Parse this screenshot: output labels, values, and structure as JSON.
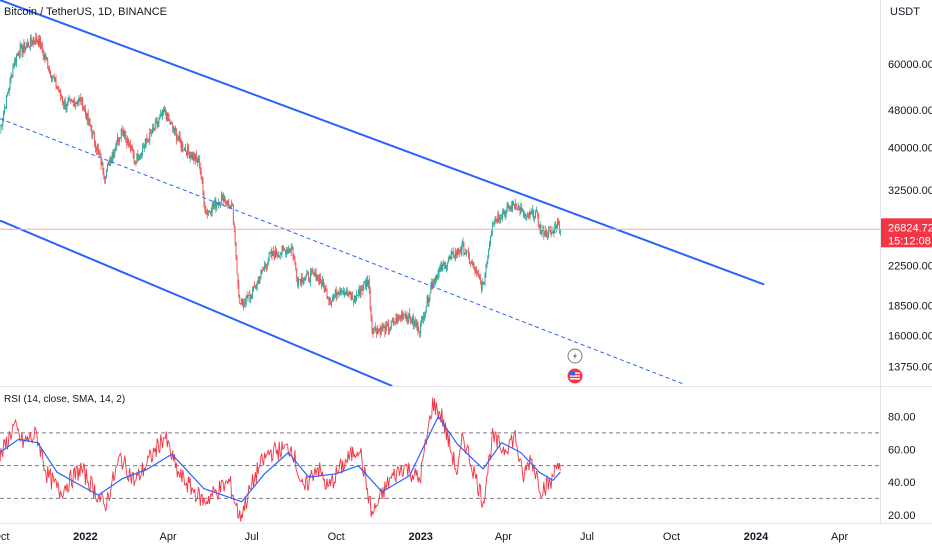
{
  "header": {
    "title": "Bitcoin / TetherUS, 1D, BINANCE",
    "currency": "USDT"
  },
  "colors": {
    "candle_up": "#26a69a",
    "candle_down": "#ef5350",
    "channel": "#2962ff",
    "price_line": "#f7a8a8",
    "price_label_bg": "#f23645",
    "rsi_line": "#f23645",
    "rsi_ma": "#2962ff",
    "rsi_bands": "#787b86"
  },
  "icons": [
    "bolt-icon",
    "us-flag-icon"
  ],
  "chart_data": [
    {
      "type": "candlestick",
      "title": "Bitcoin / TetherUS, 1D, BINANCE",
      "ylabel": "USDT",
      "scale": "log",
      "ylim": [
        12500,
        82000
      ],
      "y_ticks": [
        60000,
        48000,
        40000,
        32500,
        22500,
        18500,
        16000,
        13750
      ],
      "y_tick_labels": [
        "60000.00",
        "48000.00",
        "40000.00",
        "32500.00",
        "22500.00",
        "18500.00",
        "16000.00",
        "13750.00"
      ],
      "x_ticks": [
        "2021-10-01",
        "2022-01-01",
        "2022-04-01",
        "2022-07-01",
        "2022-10-01",
        "2023-01-01",
        "2023-04-01",
        "2023-07-01",
        "2023-10-01",
        "2024-01-01",
        "2024-04-01"
      ],
      "x_tick_labels": [
        "Oct",
        "2022",
        "Apr",
        "Jul",
        "Oct",
        "2023",
        "Apr",
        "Jul",
        "Oct",
        "2024",
        "Apr"
      ],
      "xlim": [
        "2021-09-30",
        "2024-05-15"
      ],
      "price_path": [
        [
          "2021-09-30",
          43500
        ],
        [
          "2021-10-15",
          60000
        ],
        [
          "2021-10-20",
          64000
        ],
        [
          "2021-11-10",
          68000
        ],
        [
          "2021-11-25",
          57000
        ],
        [
          "2021-12-10",
          49000
        ],
        [
          "2021-12-27",
          50500
        ],
        [
          "2022-01-10",
          42000
        ],
        [
          "2022-01-22",
          35000
        ],
        [
          "2022-02-10",
          44000
        ],
        [
          "2022-02-24",
          37500
        ],
        [
          "2022-03-28",
          47500
        ],
        [
          "2022-04-15",
          40500
        ],
        [
          "2022-05-05",
          37000
        ],
        [
          "2022-05-12",
          29000
        ],
        [
          "2022-05-31",
          31500
        ],
        [
          "2022-06-10",
          29500
        ],
        [
          "2022-06-18",
          18500
        ],
        [
          "2022-07-01",
          19500
        ],
        [
          "2022-07-20",
          23500
        ],
        [
          "2022-08-14",
          24500
        ],
        [
          "2022-08-20",
          21000
        ],
        [
          "2022-09-10",
          21500
        ],
        [
          "2022-09-25",
          19000
        ],
        [
          "2022-10-05",
          20200
        ],
        [
          "2022-10-20",
          19000
        ],
        [
          "2022-11-05",
          21000
        ],
        [
          "2022-11-09",
          16500
        ],
        [
          "2022-11-25",
          16500
        ],
        [
          "2022-12-14",
          17800
        ],
        [
          "2022-12-31",
          16550
        ],
        [
          "2023-01-14",
          20900
        ],
        [
          "2023-01-31",
          23100
        ],
        [
          "2023-02-16",
          24600
        ],
        [
          "2023-03-10",
          20200
        ],
        [
          "2023-03-20",
          28000
        ],
        [
          "2023-04-14",
          30400
        ],
        [
          "2023-04-26",
          28300
        ],
        [
          "2023-05-06",
          29000
        ],
        [
          "2023-05-12",
          26500
        ],
        [
          "2023-05-24",
          26300
        ],
        [
          "2023-05-29",
          27700
        ],
        [
          "2023-06-02",
          26824.72
        ]
      ],
      "last_price": "26824.72",
      "countdown": "15:12:08",
      "channel": {
        "upper": [
          [
            "2021-09-30",
            82000
          ],
          [
            "2024-01-10",
            20500
          ]
        ],
        "middle": [
          [
            "2021-09-30",
            46000
          ],
          [
            "2023-10-15",
            12600
          ]
        ],
        "lower": [
          [
            "2021-09-30",
            28000
          ],
          [
            "2022-12-01",
            12500
          ]
        ]
      }
    },
    {
      "type": "line",
      "title": "RSI (14, close, SMA, 14, 2)",
      "ylim": [
        15,
        98
      ],
      "y_ticks": [
        80,
        60,
        40,
        20
      ],
      "y_tick_labels": [
        "80.00",
        "60.00",
        "40.00",
        "20.00"
      ],
      "bands": [
        70,
        50,
        30
      ],
      "series": [
        {
          "points": [
            [
              "2021-09-30",
              55
            ],
            [
              "2021-10-15",
              74
            ],
            [
              "2021-10-25",
              64
            ],
            [
              "2021-11-09",
              69
            ],
            [
              "2021-11-20",
              45
            ],
            [
              "2021-12-04",
              34
            ],
            [
              "2021-12-27",
              48
            ],
            [
              "2022-01-10",
              36
            ],
            [
              "2022-01-22",
              25
            ],
            [
              "2022-02-08",
              55
            ],
            [
              "2022-02-24",
              40
            ],
            [
              "2022-03-28",
              68
            ],
            [
              "2022-04-12",
              45
            ],
            [
              "2022-05-10",
              28
            ],
            [
              "2022-05-25",
              35
            ],
            [
              "2022-06-07",
              40
            ],
            [
              "2022-06-18",
              18
            ],
            [
              "2022-07-08",
              48
            ],
            [
              "2022-07-20",
              58
            ],
            [
              "2022-08-14",
              61
            ],
            [
              "2022-08-26",
              34
            ],
            [
              "2022-09-10",
              50
            ],
            [
              "2022-09-22",
              36
            ],
            [
              "2022-10-05",
              48
            ],
            [
              "2022-10-26",
              62
            ],
            [
              "2022-11-09",
              20
            ],
            [
              "2022-11-28",
              41
            ],
            [
              "2022-12-14",
              50
            ],
            [
              "2022-12-31",
              41
            ],
            [
              "2023-01-14",
              88
            ],
            [
              "2023-01-24",
              80
            ],
            [
              "2023-02-10",
              45
            ],
            [
              "2023-02-16",
              68
            ],
            [
              "2023-03-10",
              28
            ],
            [
              "2023-03-20",
              67
            ],
            [
              "2023-04-01",
              60
            ],
            [
              "2023-04-14",
              68
            ],
            [
              "2023-04-22",
              42
            ],
            [
              "2023-05-01",
              55
            ],
            [
              "2023-05-12",
              36
            ],
            [
              "2023-05-24",
              40
            ],
            [
              "2023-05-29",
              54
            ],
            [
              "2023-06-02",
              47
            ]
          ]
        },
        {
          "points": [
            [
              "2021-09-30",
              58
            ],
            [
              "2021-10-20",
              66
            ],
            [
              "2021-11-10",
              64
            ],
            [
              "2021-12-01",
              46
            ],
            [
              "2021-12-20",
              40
            ],
            [
              "2022-01-15",
              32
            ],
            [
              "2022-02-10",
              42
            ],
            [
              "2022-03-10",
              48
            ],
            [
              "2022-04-05",
              57
            ],
            [
              "2022-05-10",
              36
            ],
            [
              "2022-06-20",
              28
            ],
            [
              "2022-07-15",
              45
            ],
            [
              "2022-08-10",
              58
            ],
            [
              "2022-09-01",
              43
            ],
            [
              "2022-10-01",
              45
            ],
            [
              "2022-10-25",
              50
            ],
            [
              "2022-11-20",
              34
            ],
            [
              "2022-12-20",
              44
            ],
            [
              "2023-01-20",
              80
            ],
            [
              "2023-02-10",
              63
            ],
            [
              "2023-03-10",
              48
            ],
            [
              "2023-03-30",
              64
            ],
            [
              "2023-04-20",
              58
            ],
            [
              "2023-05-10",
              46
            ],
            [
              "2023-05-25",
              41
            ],
            [
              "2023-06-02",
              46
            ]
          ]
        }
      ]
    }
  ]
}
